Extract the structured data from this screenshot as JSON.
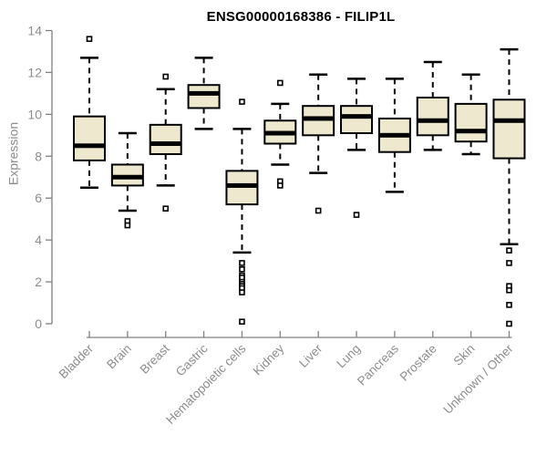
{
  "title": "ENSG00000168386 - FILIP1L",
  "chart_data": {
    "type": "boxplot",
    "title": "ENSG00000168386 - FILIP1L",
    "xlabel": "",
    "ylabel": "Expression",
    "ylim": [
      0,
      14
    ],
    "yticks": [
      0,
      2,
      4,
      6,
      8,
      10,
      12,
      14
    ],
    "grid": false,
    "legend": null,
    "categories": [
      "Bladder",
      "Brain",
      "Breast",
      "Gastric",
      "Hematopoietic cells",
      "Kidney",
      "Liver",
      "Lung",
      "Pancreas",
      "Prostate",
      "Skin",
      "Unknown / Other"
    ],
    "series": [
      {
        "name": "Bladder",
        "low": 6.5,
        "q1": 7.8,
        "median": 8.5,
        "q3": 9.9,
        "high": 12.7,
        "outliers": [
          13.6
        ]
      },
      {
        "name": "Brain",
        "low": 5.4,
        "q1": 6.6,
        "median": 7.0,
        "q3": 7.6,
        "high": 9.1,
        "outliers": [
          4.9,
          4.7
        ]
      },
      {
        "name": "Breast",
        "low": 6.6,
        "q1": 8.1,
        "median": 8.6,
        "q3": 9.5,
        "high": 11.2,
        "outliers": [
          11.8,
          5.5
        ]
      },
      {
        "name": "Gastric",
        "low": 9.3,
        "q1": 10.3,
        "median": 11.0,
        "q3": 11.4,
        "high": 12.7,
        "outliers": []
      },
      {
        "name": "Hematopoietic cells",
        "low": 3.4,
        "q1": 5.7,
        "median": 6.6,
        "q3": 7.3,
        "high": 9.3,
        "outliers": [
          10.6,
          2.9,
          2.6,
          2.3,
          2.2,
          2.0,
          1.9,
          1.8,
          1.7,
          1.5,
          0.1
        ]
      },
      {
        "name": "Kidney",
        "low": 7.6,
        "q1": 8.6,
        "median": 9.1,
        "q3": 9.7,
        "high": 10.5,
        "outliers": [
          11.5,
          6.8,
          6.6
        ]
      },
      {
        "name": "Liver",
        "low": 7.2,
        "q1": 9.0,
        "median": 9.8,
        "q3": 10.4,
        "high": 11.9,
        "outliers": [
          5.4
        ]
      },
      {
        "name": "Lung",
        "low": 8.3,
        "q1": 9.1,
        "median": 9.9,
        "q3": 10.4,
        "high": 11.7,
        "outliers": [
          5.2
        ]
      },
      {
        "name": "Pancreas",
        "low": 6.3,
        "q1": 8.2,
        "median": 9.0,
        "q3": 9.8,
        "high": 11.7,
        "outliers": []
      },
      {
        "name": "Prostate",
        "low": 8.3,
        "q1": 9.0,
        "median": 9.7,
        "q3": 10.8,
        "high": 12.5,
        "outliers": []
      },
      {
        "name": "Skin",
        "low": 8.1,
        "q1": 8.7,
        "median": 9.2,
        "q3": 10.5,
        "high": 11.9,
        "outliers": []
      },
      {
        "name": "Unknown / Other",
        "low": 3.8,
        "q1": 7.9,
        "median": 9.7,
        "q3": 10.7,
        "high": 13.1,
        "outliers": [
          3.5,
          2.9,
          1.8,
          1.6,
          0.9,
          0.0
        ]
      }
    ],
    "colors": {
      "box_fill": "#EDE8CE",
      "box_border": "#000000",
      "median": "#000000",
      "whisker": "#000000",
      "outlier_border": "#000000",
      "axis": "#808080",
      "tick_label": "#8C8C8C",
      "title": "#000000",
      "background": "#FFFFFF"
    }
  }
}
